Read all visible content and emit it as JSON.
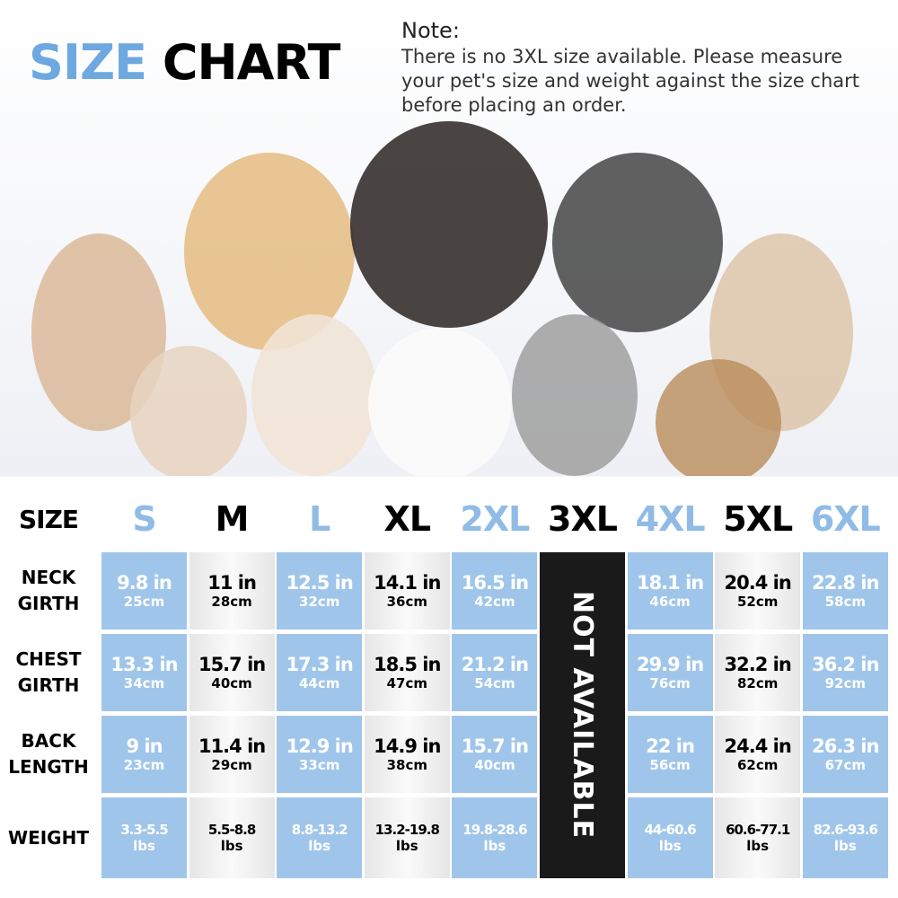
{
  "header": {
    "title_part1": "SIZE",
    "title_part2": "CHART",
    "note_title": "Note:",
    "note_text": "There is no 3XL size available. Please measure your pet's size and weight against the size chart before placing an order."
  },
  "table": {
    "corner": "SIZE",
    "columns": [
      "S",
      "M",
      "L",
      "XL",
      "2XL",
      "3XL",
      "4XL",
      "5XL",
      "6XL"
    ],
    "not_available": "NOT AVAILABLE",
    "rows": [
      {
        "label": "NECK GIRTH",
        "cells": [
          {
            "main": "9.8 in",
            "sub": "25cm"
          },
          {
            "main": "11 in",
            "sub": "28cm"
          },
          {
            "main": "12.5 in",
            "sub": "32cm"
          },
          {
            "main": "14.1 in",
            "sub": "36cm"
          },
          {
            "main": "16.5 in",
            "sub": "42cm"
          },
          {
            "main": "18.1 in",
            "sub": "46cm"
          },
          {
            "main": "20.4 in",
            "sub": "52cm"
          },
          {
            "main": "22.8 in",
            "sub": "58cm"
          }
        ]
      },
      {
        "label": "CHEST GIRTH",
        "cells": [
          {
            "main": "13.3 in",
            "sub": "34cm"
          },
          {
            "main": "15.7 in",
            "sub": "40cm"
          },
          {
            "main": "17.3 in",
            "sub": "44cm"
          },
          {
            "main": "18.5 in",
            "sub": "47cm"
          },
          {
            "main": "21.2 in",
            "sub": "54cm"
          },
          {
            "main": "29.9 in",
            "sub": "76cm"
          },
          {
            "main": "32.2 in",
            "sub": "82cm"
          },
          {
            "main": "36.2 in",
            "sub": "92cm"
          }
        ]
      },
      {
        "label": "BACK LENGTH",
        "cells": [
          {
            "main": "9 in",
            "sub": "23cm"
          },
          {
            "main": "11.4 in",
            "sub": "29cm"
          },
          {
            "main": "12.9 in",
            "sub": "33cm"
          },
          {
            "main": "14.9 in",
            "sub": "38cm"
          },
          {
            "main": "15.7 in",
            "sub": "40cm"
          },
          {
            "main": "22 in",
            "sub": "56cm"
          },
          {
            "main": "24.4 in",
            "sub": "62cm"
          },
          {
            "main": "26.3 in",
            "sub": "67cm"
          }
        ]
      },
      {
        "label": "WEIGHT",
        "cells": [
          {
            "main": "3.3-5.5",
            "sub": "lbs"
          },
          {
            "main": "5.5-8.8",
            "sub": "lbs"
          },
          {
            "main": "8.8-13.2",
            "sub": "lbs"
          },
          {
            "main": "13.2-19.8",
            "sub": "lbs"
          },
          {
            "main": "19.8-28.6",
            "sub": "lbs"
          },
          {
            "main": "44-60.6",
            "sub": "lbs"
          },
          {
            "main": "60.6-77.1",
            "sub": "lbs"
          },
          {
            "main": "82.6-93.6",
            "sub": "lbs"
          }
        ]
      }
    ]
  }
}
